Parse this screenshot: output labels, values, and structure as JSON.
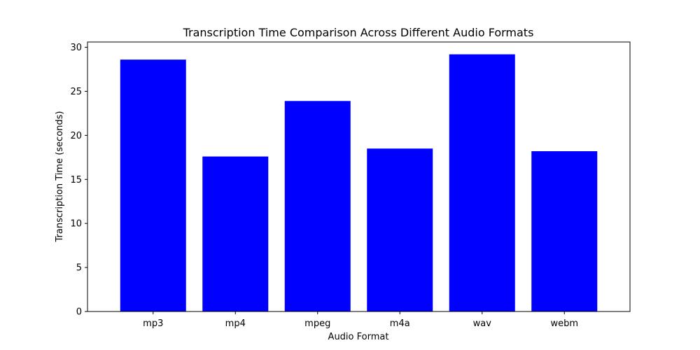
{
  "chart_data": {
    "type": "bar",
    "title": "Transcription Time Comparison Across Different Audio Formats",
    "xlabel": "Audio Format",
    "ylabel": "Transcription Time (seconds)",
    "categories": [
      "mp3",
      "mp4",
      "mpeg",
      "m4a",
      "wav",
      "webm"
    ],
    "values": [
      28.6,
      17.6,
      23.9,
      18.5,
      29.2,
      18.2
    ],
    "ylim": [
      0,
      30.6
    ],
    "yticks": [
      0,
      5,
      10,
      15,
      20,
      25,
      30
    ],
    "bar_color": "#0000ff",
    "grid": false,
    "legend": "none"
  }
}
